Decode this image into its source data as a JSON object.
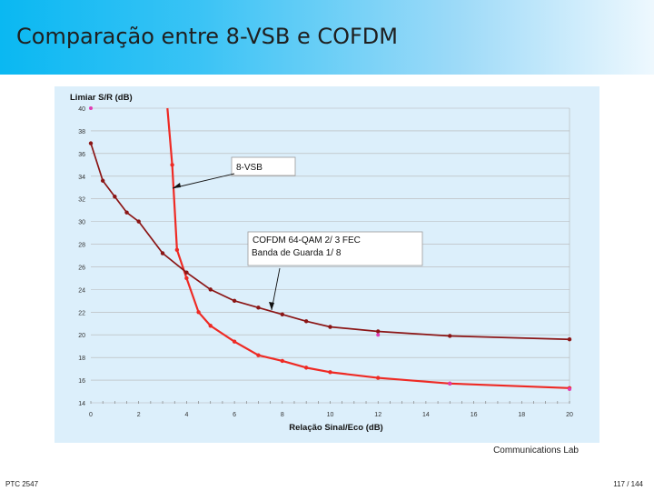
{
  "slide": {
    "title": "Comparação entre 8-VSB  e  COFDM",
    "footer_lab": "Communications Lab",
    "footer_course": "PTC 2547",
    "page_number": "117 / 144"
  },
  "colors": {
    "header_gradient_start": "#0ab8f2",
    "chart_background": "#dceffb",
    "vsb_line": "#ee2a24",
    "cofdm_line": "#8b1515",
    "marker_pink": "#e03cb4"
  },
  "chart_data": {
    "type": "line",
    "ylabel": "Limiar S/R (dB)",
    "xlabel": "Relação  Sinal/Eco (dB)",
    "x_ticks": [
      0,
      2,
      4,
      6,
      8,
      10,
      12,
      14,
      16,
      18,
      20
    ],
    "y_ticks": [
      14,
      16,
      18,
      20,
      22,
      24,
      26,
      28,
      30,
      32,
      34,
      36,
      38,
      40
    ],
    "xlim": [
      0,
      20
    ],
    "ylim": [
      14,
      40
    ],
    "grid": true,
    "series": [
      {
        "name": "8-VSB",
        "x": [
          3.2,
          3.4,
          3.6,
          4.0,
          4.5,
          5.0,
          6.0,
          7.0,
          8.0,
          9.0,
          10.0,
          12.0,
          15.0,
          20.0
        ],
        "values": [
          40.0,
          35.0,
          27.5,
          25.0,
          22.0,
          20.8,
          19.4,
          18.2,
          17.7,
          17.1,
          16.7,
          16.2,
          15.7,
          15.3
        ]
      },
      {
        "name": "COFDM 64-QAM   2/ 3 FEC  Banda de Guarda 1/ 8",
        "x": [
          0.0,
          0.5,
          1.0,
          1.5,
          2.0,
          3.0,
          4.0,
          5.0,
          6.0,
          7.0,
          8.0,
          9.0,
          10.0,
          12.0,
          15.0,
          20.0
        ],
        "values": [
          36.9,
          33.6,
          32.2,
          30.8,
          30.0,
          27.2,
          25.5,
          24.0,
          23.0,
          22.4,
          21.8,
          21.2,
          20.7,
          20.3,
          19.9,
          19.6
        ]
      }
    ],
    "annotations": [
      {
        "text": "8-VSB"
      },
      {
        "text_line1": "COFDM 64-QAM   2/ 3 FEC",
        "text_line2": "Banda de Guarda 1/ 8"
      }
    ],
    "extra_markers": [
      {
        "x": 0.0,
        "y": 40.0
      },
      {
        "x": 12.0,
        "y": 20.0
      },
      {
        "x": 15.0,
        "y": 15.7
      },
      {
        "x": 20.0,
        "y": 15.2
      }
    ]
  }
}
